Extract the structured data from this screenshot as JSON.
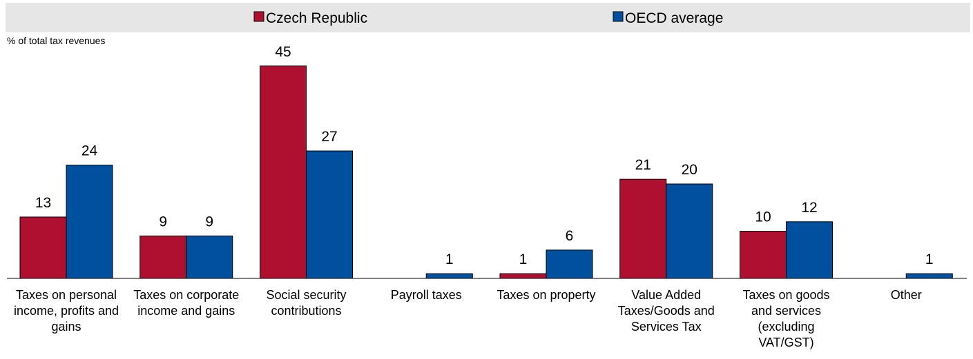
{
  "chart_data": {
    "type": "bar",
    "title": "",
    "ylabel": "% of total tax revenues",
    "xlabel": "",
    "ylim": [
      0,
      47
    ],
    "grid": false,
    "legend_position": "top",
    "categories": [
      "Taxes on personal income, profits and gains",
      "Taxes on corporate income and gains",
      "Social security contributions",
      "Payroll taxes",
      "Taxes on property",
      "Value Added Taxes/Goods and Services Tax",
      "Taxes on goods and services (excluding VAT/GST)",
      "Other"
    ],
    "category_lines": [
      [
        "Taxes on personal",
        "income, profits and",
        "gains"
      ],
      [
        "Taxes on corporate",
        "income and gains"
      ],
      [
        "Social security",
        "contributions"
      ],
      [
        "Payroll taxes"
      ],
      [
        "Taxes on property"
      ],
      [
        "Value Added",
        "Taxes/Goods and",
        "Services Tax"
      ],
      [
        "Taxes on goods",
        "and services",
        "(excluding",
        "VAT/GST)"
      ],
      [
        "Other"
      ]
    ],
    "series": [
      {
        "name": "Czech Republic",
        "color": "#B0102F",
        "values": [
          13,
          9,
          45,
          0,
          1,
          21,
          10,
          0
        ],
        "labels": [
          "13",
          "9",
          "45",
          "",
          "1",
          "21",
          "10",
          ""
        ]
      },
      {
        "name": "OECD average",
        "color": "#0050A0",
        "values": [
          24,
          9,
          27,
          1,
          6,
          20,
          12,
          1
        ],
        "labels": [
          "24",
          "9",
          "27",
          "1",
          "6",
          "20",
          "12",
          "1"
        ]
      }
    ]
  }
}
